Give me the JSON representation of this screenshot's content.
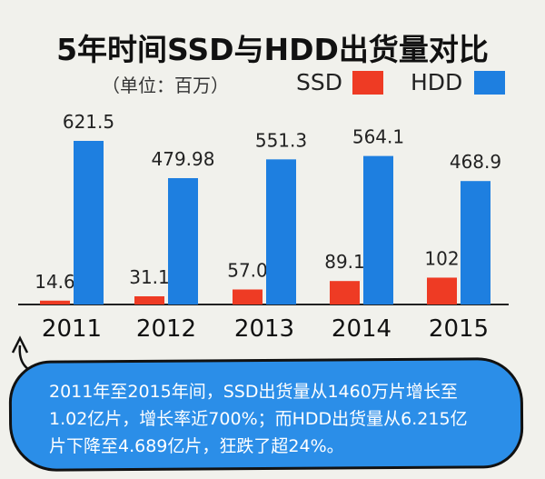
{
  "title": "5年时间SSD与HDD出货量对比",
  "unit_label": "（单位：百万）",
  "colors": {
    "ssd": "#ee3b24",
    "hdd": "#1e7fe0",
    "bubble": "#2b8ee8"
  },
  "chart_data": {
    "type": "bar",
    "title": "5年时间SSD与HDD出货量对比",
    "categories": [
      "2011",
      "2012",
      "2013",
      "2014",
      "2015"
    ],
    "series": [
      {
        "name": "SSD",
        "values": [
          14.6,
          31.1,
          57.0,
          89.1,
          102
        ],
        "labels": [
          "14.6",
          "31.1",
          "57.0",
          "89.1",
          "102"
        ]
      },
      {
        "name": "HDD",
        "values": [
          621.5,
          479.98,
          551.3,
          564.1,
          468.9
        ],
        "labels": [
          "621.5",
          "479.98",
          "551.3",
          "564.1",
          "468.9"
        ]
      }
    ],
    "ylim": [
      0,
      700
    ],
    "grid": false,
    "legend": "top-right"
  },
  "note": {
    "lines": [
      "2011年至2015年间，SSD出货量从1460万片增长至",
      "1.02亿片，增长率近700%；而HDD出货量从6.215亿",
      "片下降至4.689亿片，狂跌了超24%。"
    ]
  },
  "icons": {
    "callout_arrow": "curved-arrow-icon"
  }
}
